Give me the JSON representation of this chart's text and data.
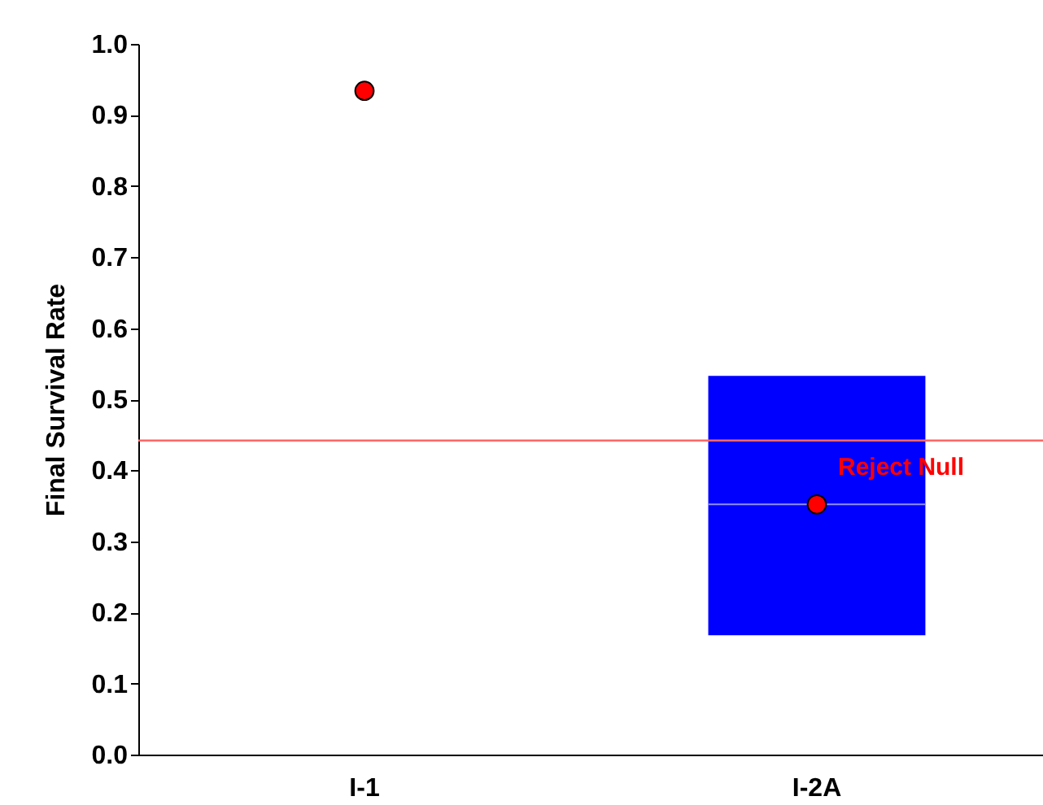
{
  "chart_data": {
    "type": "box",
    "ylabel": "Final Survival Rate",
    "categories": [
      "I-1",
      "I-2A"
    ],
    "series": [
      {
        "type": "box",
        "color": "#0000ff",
        "boxes": [
          null,
          {
            "low": 0.168,
            "q1": 0.168,
            "median": 0.352,
            "q3": 0.533,
            "high": 0.533
          }
        ]
      },
      {
        "type": "scatter",
        "color": "#ff0000",
        "marker": "circle",
        "x": [
          "I-1",
          "I-2A"
        ],
        "values": [
          0.934,
          0.352
        ]
      }
    ],
    "ylim": [
      0,
      1.0
    ],
    "yticks": [
      {
        "value": 0,
        "label": "0.0"
      },
      0.1,
      0.2,
      0.3,
      0.4,
      0.5,
      0.6,
      0.7,
      0.8,
      0.9,
      {
        "value": 1,
        "label": "1.0"
      }
    ],
    "ref_lines": [
      {
        "axis": "y",
        "value": 0.442,
        "label": "Reject Null",
        "color": "#ff6666"
      }
    ]
  }
}
